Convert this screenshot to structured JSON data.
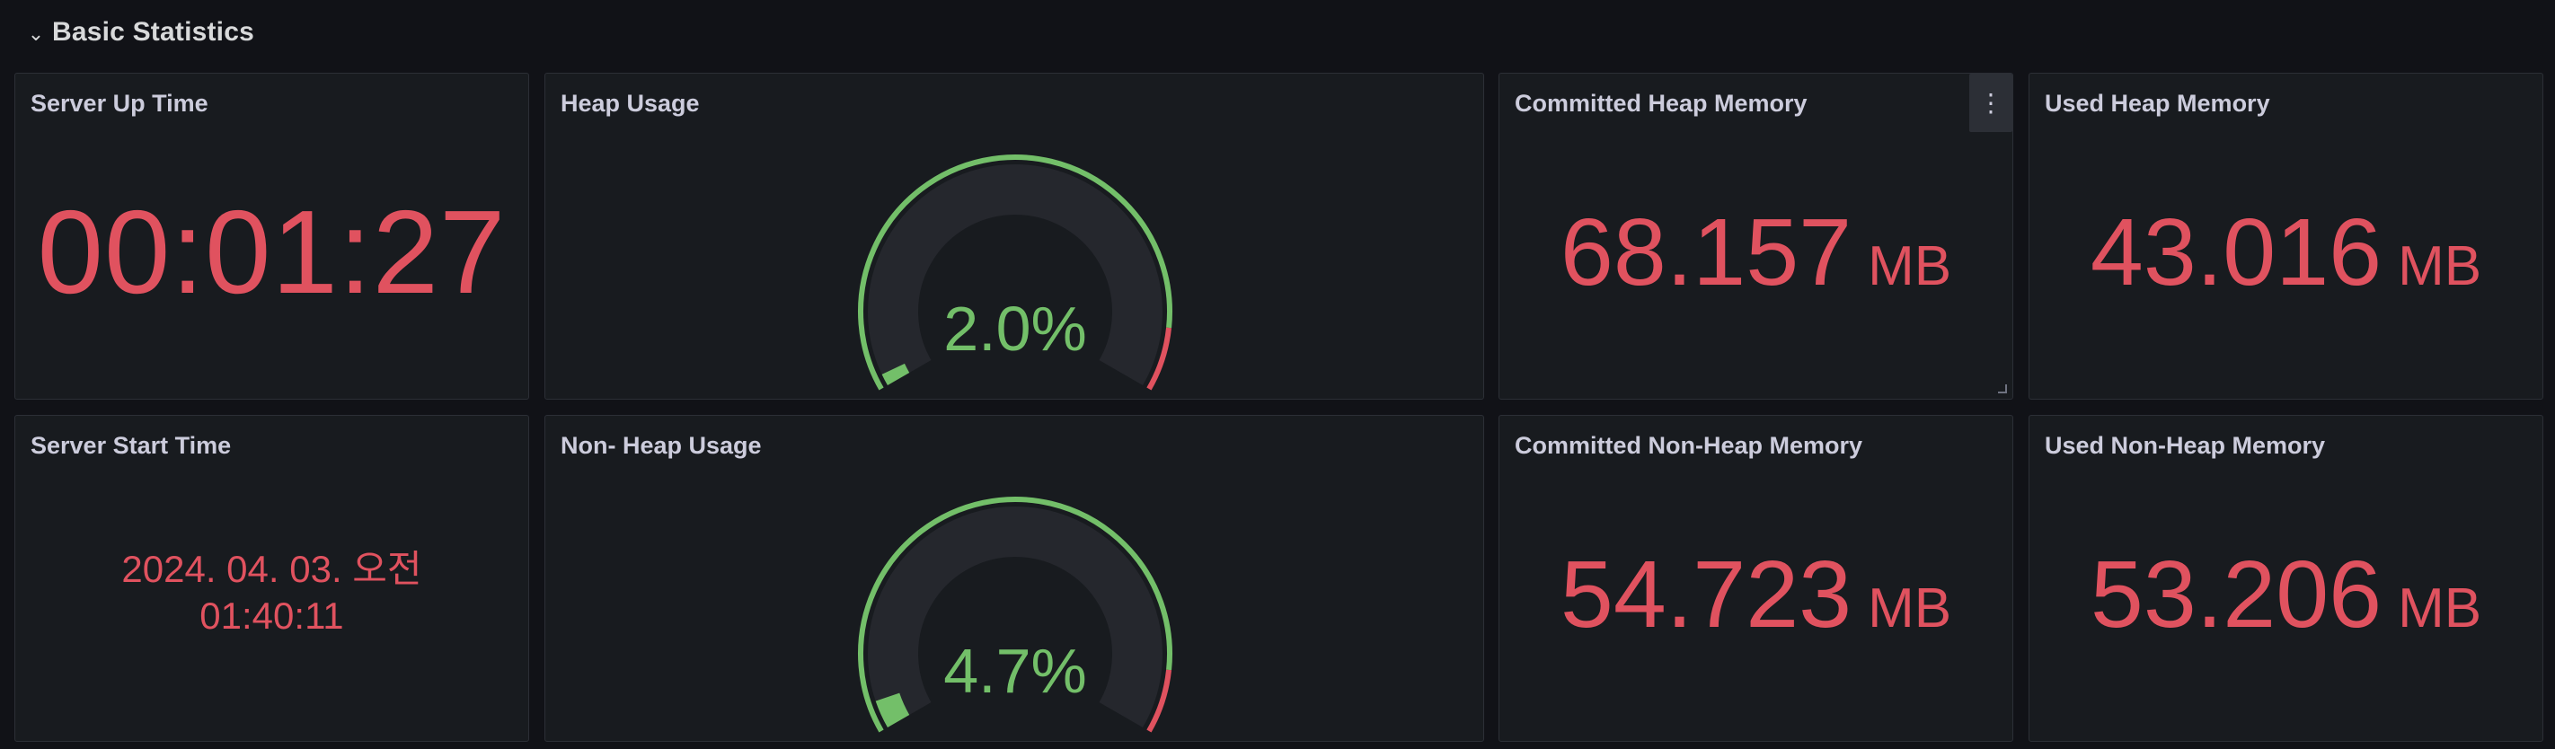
{
  "row": {
    "chevron": "chevron-down-icon",
    "title": "Basic Statistics"
  },
  "colors": {
    "bg": "#111217",
    "panel": "#181b1f",
    "red": "#e0525f",
    "green": "#73bf69",
    "track": "#25272d"
  },
  "panels": {
    "uptime": {
      "title": "Server Up Time",
      "value": "00:01:27"
    },
    "heap_usage": {
      "title": "Heap Usage",
      "value_text": "2.0%",
      "percent": 2.0,
      "threshold_percent": 90
    },
    "committed_heap": {
      "title": "Committed Heap Memory",
      "value": "68.157",
      "unit": "MB",
      "menu_icon": "kebab-menu-icon"
    },
    "used_heap": {
      "title": "Used Heap Memory",
      "value": "43.016",
      "unit": "MB"
    },
    "start_time": {
      "title": "Server Start Time",
      "line1": "2024. 04. 03. 오전",
      "line2": "01:40:11"
    },
    "non_heap_usage": {
      "title": "Non- Heap Usage",
      "value_text": "4.7%",
      "percent": 4.7,
      "threshold_percent": 90
    },
    "committed_non_heap": {
      "title": "Committed Non-Heap Memory",
      "value": "54.723",
      "unit": "MB"
    },
    "used_non_heap": {
      "title": "Used Non-Heap Memory",
      "value": "53.206",
      "unit": "MB"
    }
  }
}
